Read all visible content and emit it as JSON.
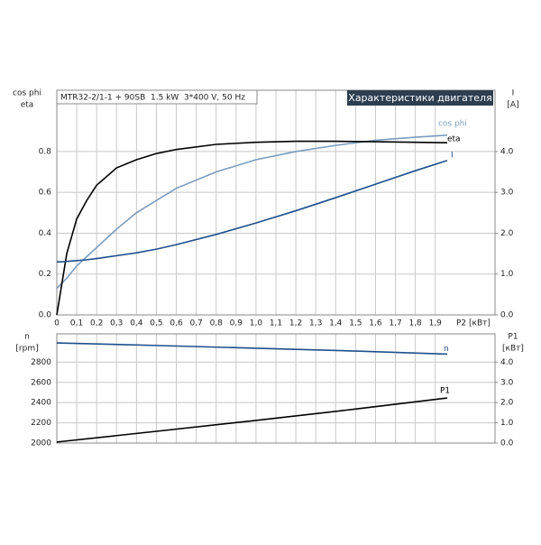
{
  "chart_data": [
    {
      "type": "line",
      "title": "Характеристики двигателя",
      "subtitle": "MTR32-2/1-1 + 90SB  1.5 kW  3*400 V, 50 Hz",
      "ylabel_lines": [
        "cos phi",
        "eta"
      ],
      "y2label_lines": [
        "I",
        "[A]"
      ],
      "xlabel": "P2 [кВт]",
      "grid": true,
      "x": [
        0,
        0.02,
        0.05,
        0.1,
        0.15,
        0.2,
        0.3,
        0.4,
        0.5,
        0.6,
        0.8,
        1.0,
        1.2,
        1.4,
        1.6,
        1.8,
        1.96
      ],
      "series": [
        {
          "name": "cos phi",
          "color": "#7a9cbf",
          "values": [
            0.13,
            0.15,
            0.18,
            0.24,
            0.285,
            0.33,
            0.42,
            0.5,
            0.56,
            0.62,
            0.7,
            0.76,
            0.8,
            0.83,
            0.855,
            0.87,
            0.88
          ]
        },
        {
          "name": "eta",
          "color": "#000000",
          "values": [
            0.0,
            0.12,
            0.3,
            0.47,
            0.56,
            0.635,
            0.72,
            0.76,
            0.79,
            0.81,
            0.835,
            0.845,
            0.85,
            0.85,
            0.848,
            0.845,
            0.843
          ]
        },
        {
          "name": "I",
          "color": "#1f4e8c",
          "axis": "y2",
          "values": [
            1.3,
            1.3,
            1.31,
            1.33,
            1.35,
            1.38,
            1.45,
            1.52,
            1.61,
            1.72,
            1.97,
            2.25,
            2.55,
            2.87,
            3.2,
            3.53,
            3.78
          ]
        }
      ],
      "xlim": [
        0,
        2.2
      ],
      "xticks": [
        0,
        {
          "value": 0.1,
          "label": "0,1"
        },
        {
          "value": 0.2,
          "label": "0,2"
        },
        {
          "value": 0.3,
          "label": "0,3"
        },
        {
          "value": 0.4,
          "label": "0,4"
        },
        {
          "value": 0.5,
          "label": "0,5"
        },
        {
          "value": 0.6,
          "label": "0,6"
        },
        {
          "value": 0.7,
          "label": "0,7"
        },
        {
          "value": 0.8,
          "label": "0,8"
        },
        {
          "value": 0.9,
          "label": "0,9"
        },
        {
          "value": 1.0,
          "label": "1,0"
        },
        {
          "value": 1.1,
          "label": "1,1"
        },
        {
          "value": 1.2,
          "label": "1,2"
        },
        {
          "value": 1.3,
          "label": "1,3"
        },
        {
          "value": 1.4,
          "label": "1,4"
        },
        {
          "value": 1.5,
          "label": "1,5"
        },
        {
          "value": 1.6,
          "label": "1,6"
        },
        {
          "value": 1.7,
          "label": "1,7"
        },
        {
          "value": 1.8,
          "label": "1,8"
        },
        {
          "value": 1.9,
          "label": "1,9"
        }
      ],
      "ylim": [
        0,
        1.1
      ],
      "yticks": [
        {
          "value": 0,
          "label": "0.0"
        },
        0.2,
        0.4,
        0.6,
        0.8
      ],
      "y2lim": [
        0,
        5.5
      ],
      "y2ticks": [
        {
          "value": 0,
          "label": "0.0"
        },
        {
          "value": 1,
          "label": "1.0"
        },
        {
          "value": 2,
          "label": "2.0"
        },
        {
          "value": 3,
          "label": "3.0"
        },
        {
          "value": 4,
          "label": "4.0"
        }
      ]
    },
    {
      "type": "line",
      "ylabel_lines": [
        "n",
        "[rpm]"
      ],
      "y2label_lines": [
        "P1",
        "[кВт]"
      ],
      "grid": true,
      "x": [
        0,
        0.5,
        1.0,
        1.5,
        1.96
      ],
      "series": [
        {
          "name": "n",
          "color": "#1f4e8c",
          "values": [
            2990,
            2965,
            2938,
            2910,
            2880
          ]
        },
        {
          "name": "P1",
          "color": "#000000",
          "axis": "y2",
          "values": [
            0.05,
            0.58,
            1.12,
            1.68,
            2.23
          ]
        }
      ],
      "xlim": [
        0,
        2.2
      ],
      "ylim": [
        2000,
        3080
      ],
      "yticks": [
        2000,
        2200,
        2400,
        2600,
        2800
      ],
      "y2lim": [
        0,
        5.4
      ],
      "y2ticks": [
        {
          "value": 0,
          "label": "0.0"
        },
        {
          "value": 1,
          "label": "1.0"
        },
        {
          "value": 2,
          "label": "2.0"
        },
        {
          "value": 3,
          "label": "3.0"
        },
        {
          "value": 4,
          "label": "4.0"
        }
      ]
    }
  ]
}
